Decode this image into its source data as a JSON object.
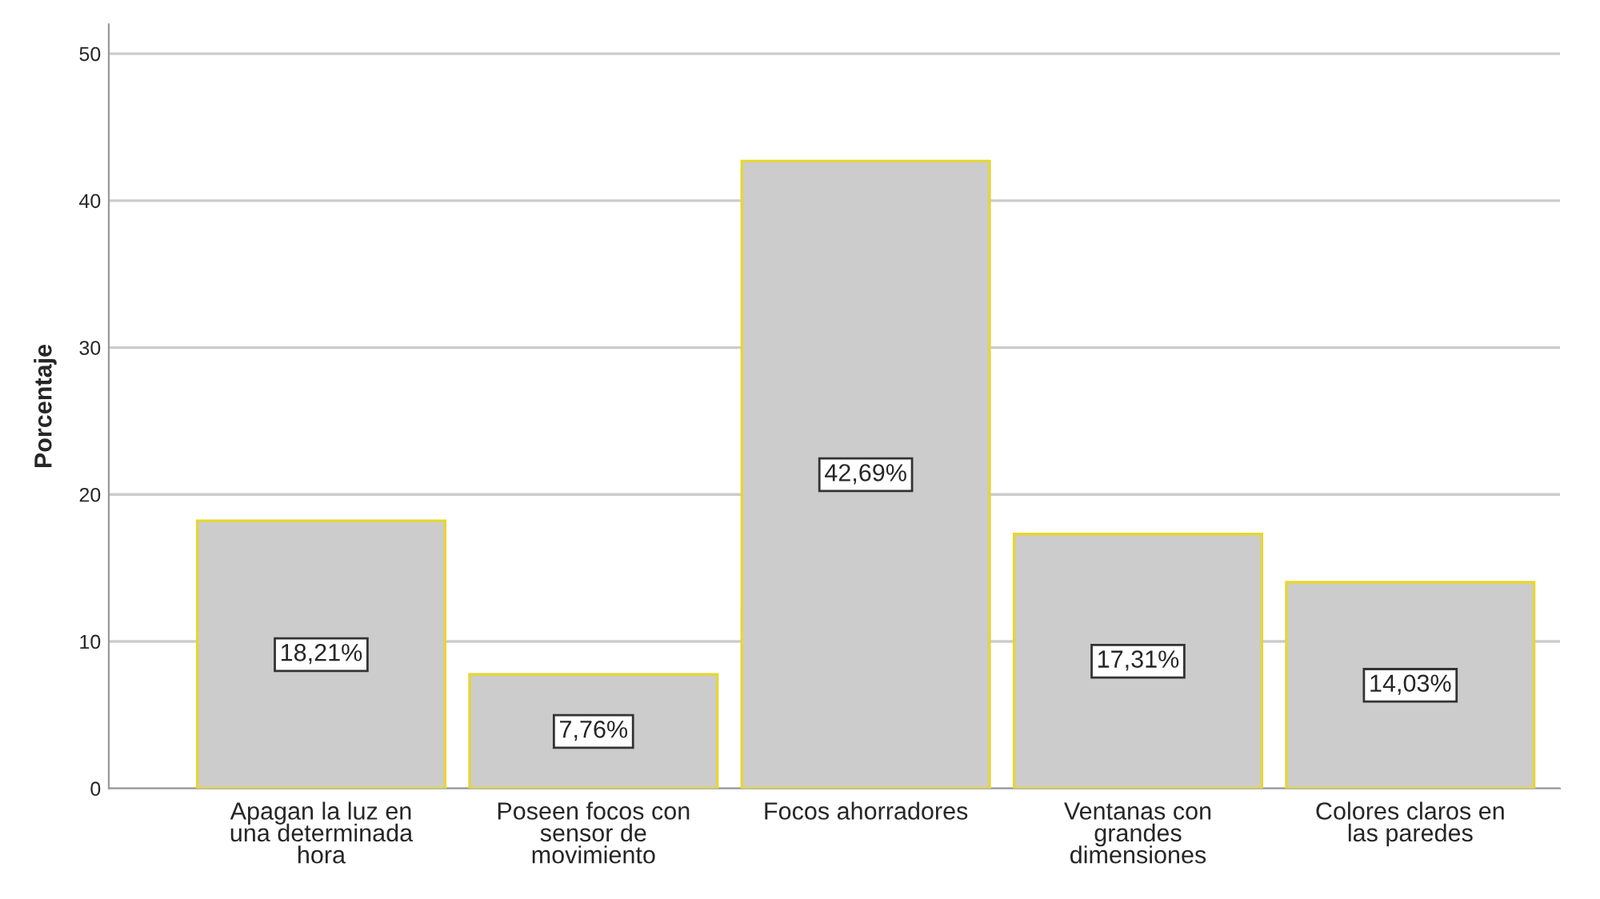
{
  "chart_data": {
    "type": "bar",
    "ylabel": "Porcentaje",
    "categories": [
      "Apagan la luz en\nuna determinada\nhora",
      "Poseen focos con\nsensor de\nmovimiento",
      "Focos ahorradores",
      "Ventanas con\ngrandes\ndimensiones",
      "Colores claros en\nlas paredes"
    ],
    "values": [
      18.21,
      7.76,
      42.69,
      17.31,
      14.03
    ],
    "value_labels": [
      "18,21%",
      "7,76%",
      "42,69%",
      "17,31%",
      "14,03%"
    ],
    "color": "#cccccc",
    "ylim": [
      0,
      52
    ],
    "yticks": [
      0,
      10,
      20,
      30,
      40,
      50
    ],
    "grid": "y"
  }
}
